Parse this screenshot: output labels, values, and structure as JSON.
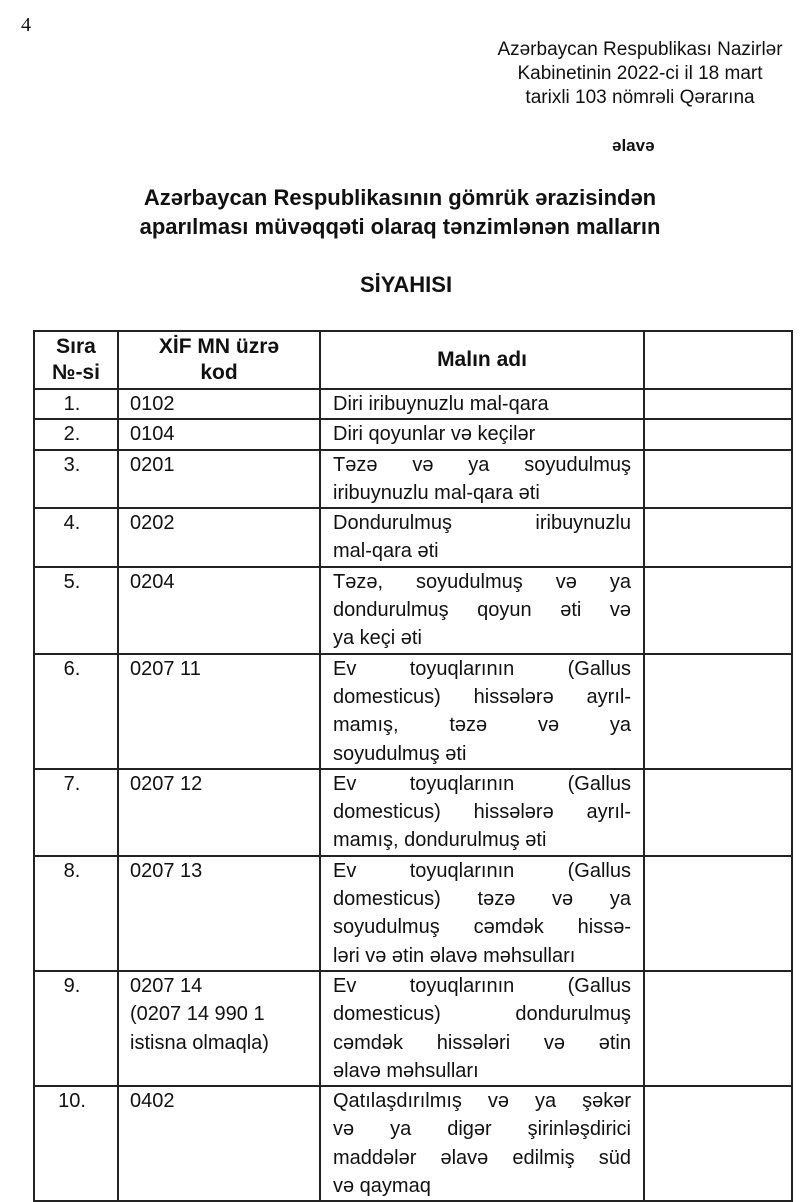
{
  "page_number": "4",
  "header_reference": [
    "Azərbaycan Respublikası Nazirlər",
    "Kabinetinin 2022-ci il 18 mart",
    "tarixli 103 nömrəli Qərarına"
  ],
  "annex_label": "əlavə",
  "title": [
    "Azərbaycan Respublikasının gömrük ərazisindən",
    "aparılması müvəqqəti olaraq tənzimlənən malların"
  ],
  "subtitle": "SİYAHISI",
  "table": {
    "headers": {
      "number": [
        "Sıra",
        "№-si"
      ],
      "code": [
        "XİF MN üzrə",
        "kod"
      ],
      "name": "Malın adı",
      "extra": ""
    },
    "rows": [
      {
        "number": "1.",
        "code": [
          "0102"
        ],
        "name": [
          "Diri iribuynuzlu mal-qara"
        ]
      },
      {
        "number": "2.",
        "code": [
          "0104"
        ],
        "name": [
          "Diri qoyunlar və keçilər"
        ]
      },
      {
        "number": "3.",
        "code": [
          "0201"
        ],
        "name": [
          "Təzə və ya soyudulmuş",
          "iribuynuzlu mal-qara əti"
        ]
      },
      {
        "number": "4.",
        "code": [
          "0202"
        ],
        "name": [
          "Dondurulmuş iribuynuzlu",
          "mal-qara əti"
        ]
      },
      {
        "number": "5.",
        "code": [
          "0204"
        ],
        "name": [
          "Təzə, soyudulmuş və ya",
          "dondurulmuş qoyun əti və",
          "ya keçi əti"
        ]
      },
      {
        "number": "6.",
        "code": [
          "0207 11"
        ],
        "name": [
          "Ev toyuqlarının (Gallus",
          "domesticus) hissələrə ayrıl-",
          "mamış, təzə və ya",
          "soyudulmuş əti"
        ]
      },
      {
        "number": "7.",
        "code": [
          "0207 12"
        ],
        "name": [
          "Ev toyuqlarının (Gallus",
          "domesticus) hissələrə ayrıl-",
          "mamış, dondurulmuş əti"
        ]
      },
      {
        "number": "8.",
        "code": [
          "0207 13"
        ],
        "name": [
          "Ev toyuqlarının (Gallus",
          "domesticus) təzə və ya",
          "soyudulmuş cəmdək hissə-",
          "ləri və ətin əlavə məhsulları"
        ]
      },
      {
        "number": "9.",
        "code": [
          "0207 14",
          "(0207 14 990 1",
          "istisna olmaqla)"
        ],
        "name": [
          "Ev toyuqlarının (Gallus",
          "domesticus) dondurulmuş",
          "cəmdək hissələri və ətin",
          "əlavə məhsulları"
        ]
      },
      {
        "number": "10.",
        "code": [
          "0402"
        ],
        "name": [
          "Qatılaşdırılmış və ya şəkər",
          "və ya digər şirinləşdirici",
          "maddələr əlavə edilmiş süd",
          "və qaymaq"
        ]
      }
    ]
  }
}
